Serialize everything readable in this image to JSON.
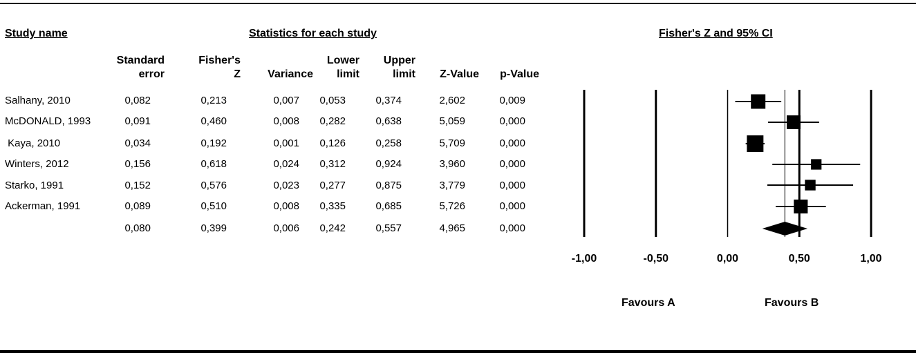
{
  "headers": {
    "study_name": "Study name",
    "statistics": "Statistics for each study",
    "plot": "Fisher's Z and 95% CI"
  },
  "columns": [
    {
      "line1": "Standard",
      "line2": "error"
    },
    {
      "line1": "Fisher's",
      "line2": "Z"
    },
    {
      "line1": "",
      "line2": "Variance"
    },
    {
      "line1": "Lower",
      "line2": "limit"
    },
    {
      "line1": "Upper",
      "line2": "limit"
    },
    {
      "line1": "",
      "line2": "Z-Value"
    },
    {
      "line1": "",
      "line2": "p-Value"
    }
  ],
  "rows": [
    {
      "study": "Salhany, 2010",
      "values": [
        "0,082",
        "0,213",
        "0,007",
        "0,053",
        "0,374",
        "2,602",
        "0,009"
      ]
    },
    {
      "study": "McDONALD, 1993",
      "values": [
        "0,091",
        "0,460",
        "0,008",
        "0,282",
        "0,638",
        "5,059",
        "0,000"
      ]
    },
    {
      "study": " Kaya, 2010",
      "values": [
        "0,034",
        "0,192",
        "0,001",
        "0,126",
        "0,258",
        "5,709",
        "0,000"
      ]
    },
    {
      "study": "Winters, 2012",
      "values": [
        "0,156",
        "0,618",
        "0,024",
        "0,312",
        "0,924",
        "3,960",
        "0,000"
      ]
    },
    {
      "study": "Starko, 1991",
      "values": [
        "0,152",
        "0,576",
        "0,023",
        "0,277",
        "0,875",
        "3,779",
        "0,000"
      ]
    },
    {
      "study": "Ackerman, 1991",
      "values": [
        "0,089",
        "0,510",
        "0,008",
        "0,335",
        "0,685",
        "5,726",
        "0,000"
      ]
    },
    {
      "study": "",
      "values": [
        "0,080",
        "0,399",
        "0,006",
        "0,242",
        "0,557",
        "4,965",
        "0,000"
      ]
    }
  ],
  "axis_ticks": [
    "-1,00",
    "-0,50",
    "0,00",
    "0,50",
    "1,00"
  ],
  "favours": {
    "left": "Favours A",
    "right": "Favours B"
  },
  "chart_data": {
    "type": "forest",
    "title": "Fisher's Z and 95% CI",
    "xlim": [
      -1.0,
      1.0
    ],
    "xticks": [
      -1.0,
      -0.5,
      0.0,
      0.5,
      1.0
    ],
    "studies": [
      {
        "name": "Salhany, 2010",
        "estimate": 0.213,
        "lower": 0.053,
        "upper": 0.374,
        "weight_se": 0.082
      },
      {
        "name": "McDONALD, 1993",
        "estimate": 0.46,
        "lower": 0.282,
        "upper": 0.638,
        "weight_se": 0.091
      },
      {
        "name": "Kaya, 2010",
        "estimate": 0.192,
        "lower": 0.126,
        "upper": 0.258,
        "weight_se": 0.034
      },
      {
        "name": "Winters, 2012",
        "estimate": 0.618,
        "lower": 0.312,
        "upper": 0.924,
        "weight_se": 0.156
      },
      {
        "name": "Starko, 1991",
        "estimate": 0.576,
        "lower": 0.277,
        "upper": 0.875,
        "weight_se": 0.152
      },
      {
        "name": "Ackerman, 1991",
        "estimate": 0.51,
        "lower": 0.335,
        "upper": 0.685,
        "weight_se": 0.089
      }
    ],
    "summary": {
      "estimate": 0.399,
      "lower": 0.242,
      "upper": 0.557
    },
    "reference_line": 0.399,
    "favours": [
      "Favours A",
      "Favours B"
    ]
  }
}
